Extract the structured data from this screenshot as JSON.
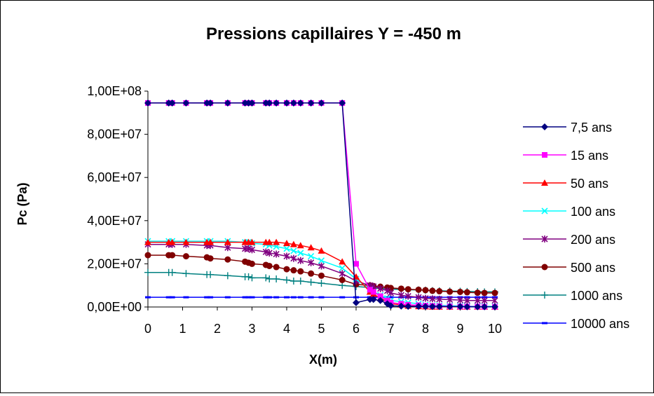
{
  "chart_data": {
    "type": "line",
    "title": "Pressions capillaires Y = -450 m",
    "xlabel": "X(m)",
    "ylabel": "Pc (Pa)",
    "xlim": [
      0,
      10
    ],
    "ylim": [
      0,
      100000000
    ],
    "xticks": [
      "0",
      "1",
      "2",
      "3",
      "4",
      "5",
      "6",
      "7",
      "8",
      "9",
      "10"
    ],
    "yticks": [
      "0,00E+00",
      "2,00E+07",
      "4,00E+07",
      "6,00E+07",
      "8,00E+07",
      "1,00E+08"
    ],
    "grid": false,
    "legend_position": "right",
    "x": [
      0,
      0.6,
      0.7,
      1.1,
      1.7,
      1.8,
      2.3,
      2.8,
      2.9,
      3.0,
      3.4,
      3.5,
      3.7,
      4.0,
      4.2,
      4.4,
      4.7,
      5.0,
      5.6,
      6.0,
      6.4,
      6.5,
      6.7,
      6.9,
      7.0,
      7.3,
      7.5,
      7.8,
      8.0,
      8.2,
      8.4,
      8.7,
      9.0,
      9.2,
      9.5,
      9.7,
      10.0
    ],
    "series": [
      {
        "name": "7,5 ans",
        "color": "#000080",
        "marker": "diamond",
        "values": [
          94500000,
          94500000,
          94500000,
          94500000,
          94500000,
          94500000,
          94500000,
          94500000,
          94500000,
          94500000,
          94500000,
          94500000,
          94500000,
          94500000,
          94500000,
          94500000,
          94500000,
          94500000,
          94500000,
          2000000,
          3500000,
          3500000,
          3000000,
          1500000,
          600000,
          400000,
          300000,
          300000,
          200000,
          200000,
          200000,
          200000,
          200000,
          100000,
          100000,
          100000,
          100000
        ]
      },
      {
        "name": "15 ans",
        "color": "#ff00ff",
        "marker": "square",
        "values": [
          94500000,
          94500000,
          94500000,
          94500000,
          94500000,
          94500000,
          94500000,
          94500000,
          94500000,
          94500000,
          94500000,
          94500000,
          94500000,
          94500000,
          94500000,
          94500000,
          94500000,
          94500000,
          94500000,
          20000000,
          8000000,
          7000000,
          5000000,
          3000000,
          2000000,
          1500000,
          1000000,
          800000,
          600000,
          500000,
          400000,
          300000,
          200000,
          200000,
          200000,
          100000,
          100000
        ]
      },
      {
        "name": "50 ans",
        "color": "#ff0000",
        "marker": "triangle",
        "values": [
          30000000,
          30000000,
          30000000,
          30000000,
          30000000,
          30000000,
          30000000,
          30000000,
          30000000,
          30000000,
          30000000,
          30000000,
          30000000,
          29500000,
          29000000,
          28500000,
          27500000,
          26000000,
          21000000,
          14000000,
          7000000,
          6000000,
          4000000,
          2500000,
          1500000,
          1000000,
          500000,
          300000,
          200000,
          100000,
          100000,
          100000,
          100000,
          100000,
          100000,
          100000,
          100000
        ]
      },
      {
        "name": "100 ans",
        "color": "#00ffff",
        "marker": "x",
        "values": [
          30500000,
          30500000,
          30500000,
          30500000,
          30500000,
          30500000,
          30500000,
          30000000,
          30000000,
          29500000,
          29000000,
          28500000,
          28000000,
          27000000,
          26000000,
          25000000,
          23500000,
          21500000,
          18000000,
          13000000,
          8000000,
          7000000,
          5500000,
          4000000,
          3000000,
          2500000,
          2000000,
          1500000,
          1000000,
          800000,
          700000,
          600000,
          500000,
          400000,
          300000,
          300000,
          300000
        ]
      },
      {
        "name": "200 ans",
        "color": "#800080",
        "marker": "star",
        "values": [
          29000000,
          29000000,
          29000000,
          29000000,
          28500000,
          28500000,
          27500000,
          27000000,
          27000000,
          26500000,
          25500000,
          25000000,
          24500000,
          23500000,
          22500000,
          21500000,
          20500000,
          19000000,
          15500000,
          12000000,
          10000000,
          9500000,
          8500000,
          7500000,
          6500000,
          5500000,
          5000000,
          4500000,
          4000000,
          3800000,
          3600000,
          3400000,
          3200000,
          3000000,
          3000000,
          3000000,
          3000000
        ]
      },
      {
        "name": "500 ans",
        "color": "#800000",
        "marker": "circle",
        "values": [
          24000000,
          24000000,
          24000000,
          23500000,
          23000000,
          22500000,
          22000000,
          21000000,
          20500000,
          20000000,
          19500000,
          19000000,
          18500000,
          17500000,
          17000000,
          16500000,
          15500000,
          14500000,
          12500000,
          10500000,
          10000000,
          9700000,
          9400000,
          9000000,
          8800000,
          8500000,
          8200000,
          8000000,
          7800000,
          7500000,
          7300000,
          7100000,
          7000000,
          6800000,
          6600000,
          6500000,
          6500000
        ]
      },
      {
        "name": "1000 ans",
        "color": "#008080",
        "marker": "plus",
        "values": [
          16000000,
          16000000,
          16000000,
          15500000,
          15000000,
          15000000,
          14500000,
          14000000,
          14000000,
          13500000,
          13500000,
          13000000,
          13000000,
          12500000,
          12000000,
          12000000,
          11500000,
          11000000,
          10000000,
          9500000,
          9000000,
          8800000,
          8600000,
          8500000,
          8300000,
          8100000,
          8000000,
          7900000,
          7800000,
          7600000,
          7500000,
          7400000,
          7300000,
          7200000,
          7100000,
          7000000,
          7000000
        ]
      },
      {
        "name": "10000 ans",
        "color": "#0000ff",
        "marker": "dash",
        "values": [
          4500000,
          4500000,
          4500000,
          4500000,
          4500000,
          4500000,
          4500000,
          4500000,
          4500000,
          4500000,
          4500000,
          4500000,
          4500000,
          4500000,
          4500000,
          4500000,
          4500000,
          4500000,
          4500000,
          4500000,
          4500000,
          4500000,
          4500000,
          4500000,
          4500000,
          4500000,
          4500000,
          4500000,
          4500000,
          4500000,
          4500000,
          4500000,
          4500000,
          4500000,
          4500000,
          4500000,
          4500000
        ]
      }
    ]
  }
}
